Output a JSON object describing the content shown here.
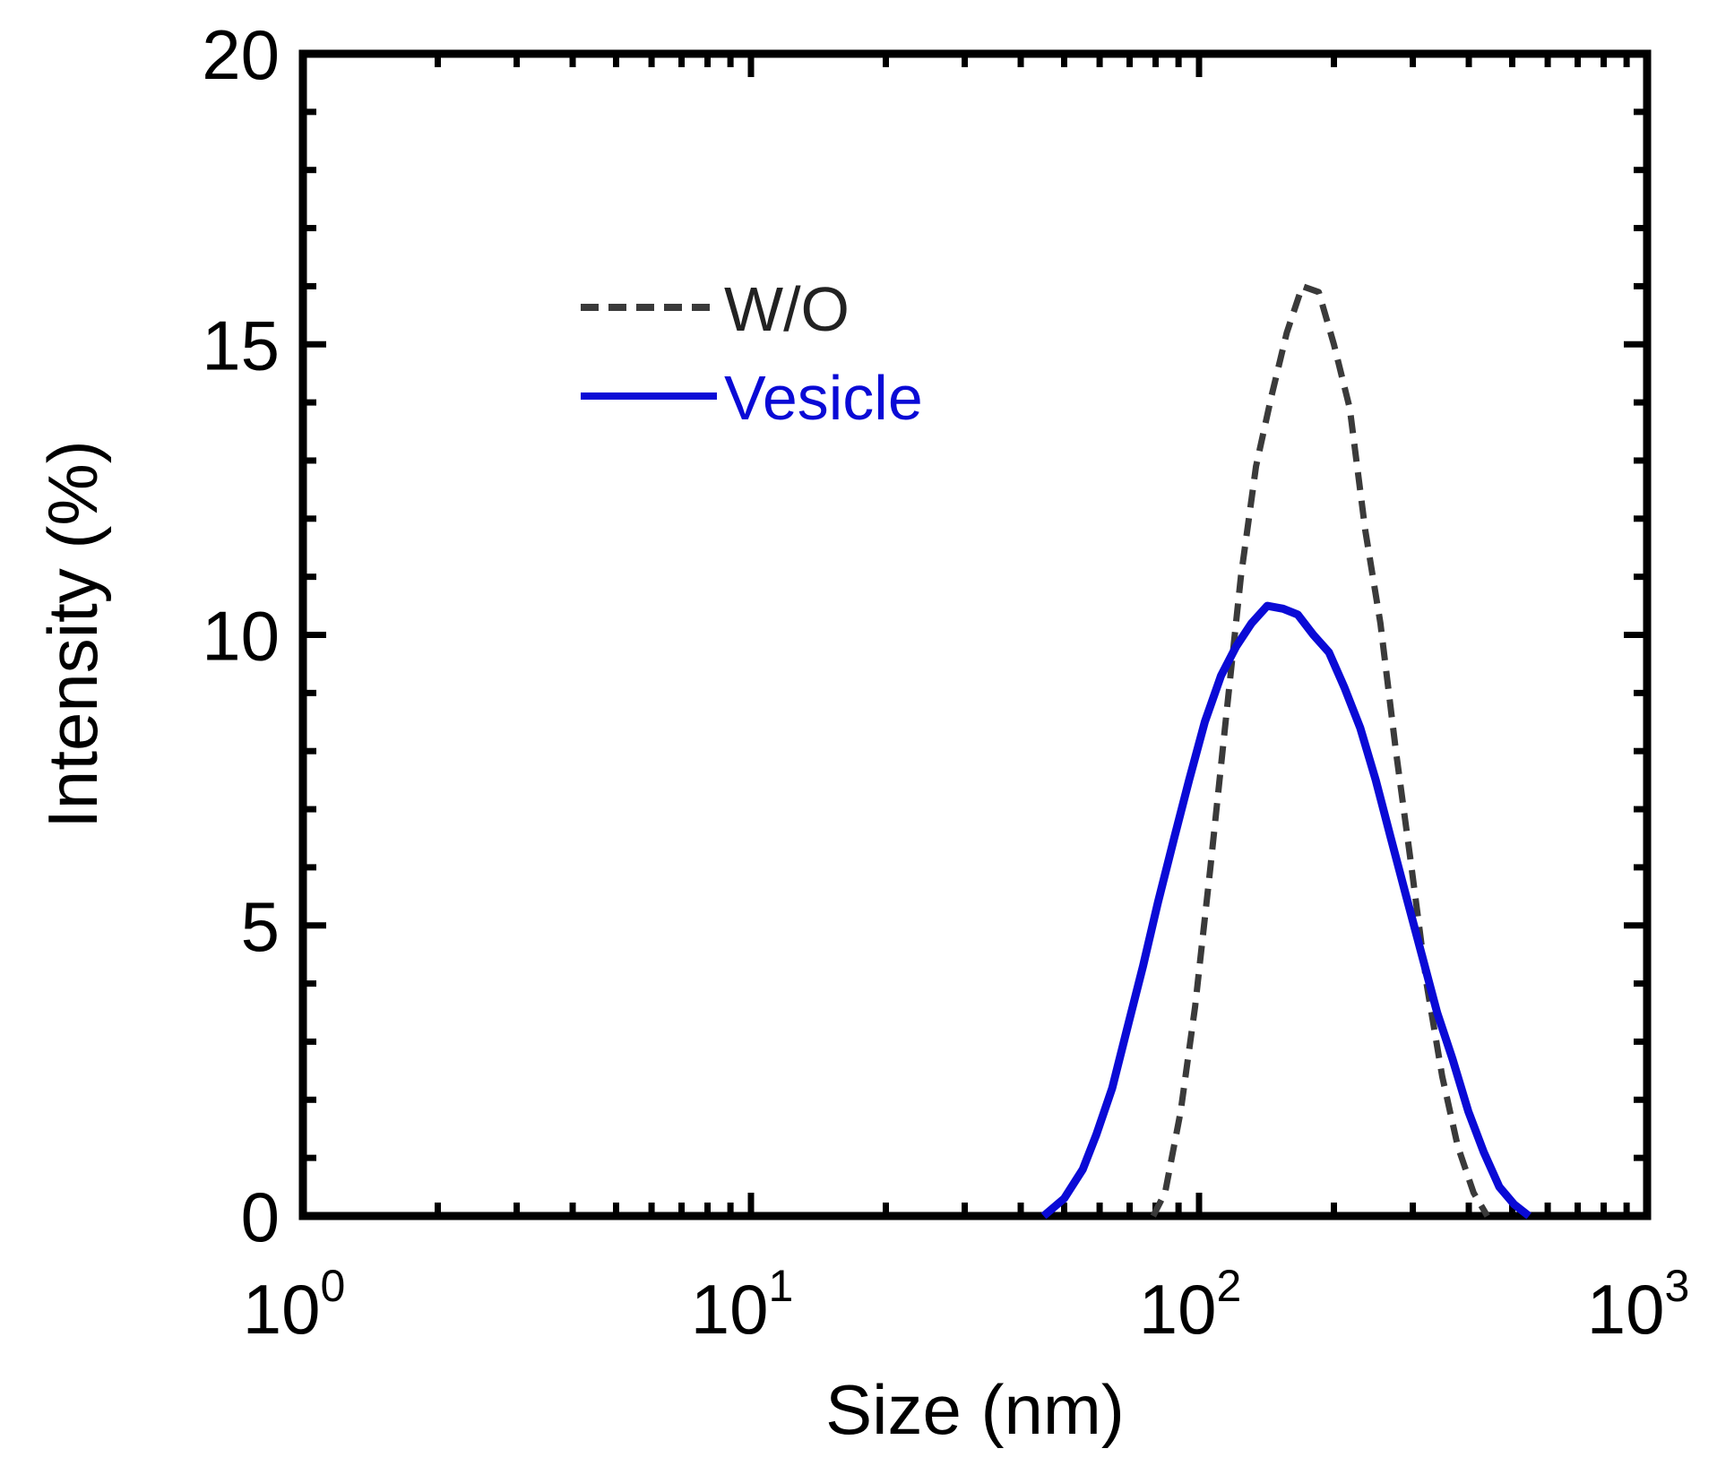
{
  "chart_data": {
    "type": "line",
    "xscale": "log",
    "xlim": [
      1,
      1000
    ],
    "ylim": [
      0,
      20
    ],
    "xlabel": "Size (nm)",
    "ylabel": "Intensity (%)",
    "x_ticks": [
      {
        "base": "10",
        "exp": "0",
        "value": 1
      },
      {
        "base": "10",
        "exp": "1",
        "value": 10
      },
      {
        "base": "10",
        "exp": "2",
        "value": 100
      },
      {
        "base": "10",
        "exp": "3",
        "value": 1000
      }
    ],
    "y_ticks": [
      {
        "label": "0",
        "value": 0
      },
      {
        "label": "5",
        "value": 5
      },
      {
        "label": "10",
        "value": 10
      },
      {
        "label": "15",
        "value": 15
      },
      {
        "label": "20",
        "value": 20
      }
    ],
    "legend": {
      "position": "upper-left"
    },
    "series": [
      {
        "name": "W/O",
        "color": "#3a3a3a",
        "style": "dashed",
        "x": [
          79,
          84,
          91,
          98,
          106,
          115,
          124,
          134,
          145,
          157,
          170,
          185,
          200,
          217,
          235,
          254,
          275,
          298,
          322,
          349,
          378,
          410,
          440
        ],
        "y": [
          0,
          0.4,
          1.8,
          3.6,
          6.0,
          8.6,
          11.0,
          12.9,
          14.1,
          15.2,
          16.0,
          15.9,
          15.0,
          13.9,
          11.8,
          10.2,
          8.0,
          6.0,
          4.0,
          2.4,
          1.2,
          0.4,
          0
        ]
      },
      {
        "name": "Vesicle",
        "color": "#0a0ad6",
        "style": "solid",
        "x": [
          45,
          50,
          55,
          59,
          64,
          69,
          75,
          81,
          88,
          95,
          103,
          112,
          121,
          131,
          142,
          154,
          166,
          180,
          195,
          211,
          229,
          248,
          268,
          290,
          314,
          340,
          368,
          399,
          432,
          468,
          505,
          545
        ],
        "y": [
          0,
          0.3,
          0.8,
          1.4,
          2.2,
          3.2,
          4.3,
          5.4,
          6.5,
          7.5,
          8.5,
          9.3,
          9.8,
          10.2,
          10.5,
          10.45,
          10.35,
          10.0,
          9.7,
          9.1,
          8.4,
          7.5,
          6.5,
          5.5,
          4.5,
          3.5,
          2.7,
          1.8,
          1.1,
          0.5,
          0.2,
          0
        ]
      }
    ]
  }
}
